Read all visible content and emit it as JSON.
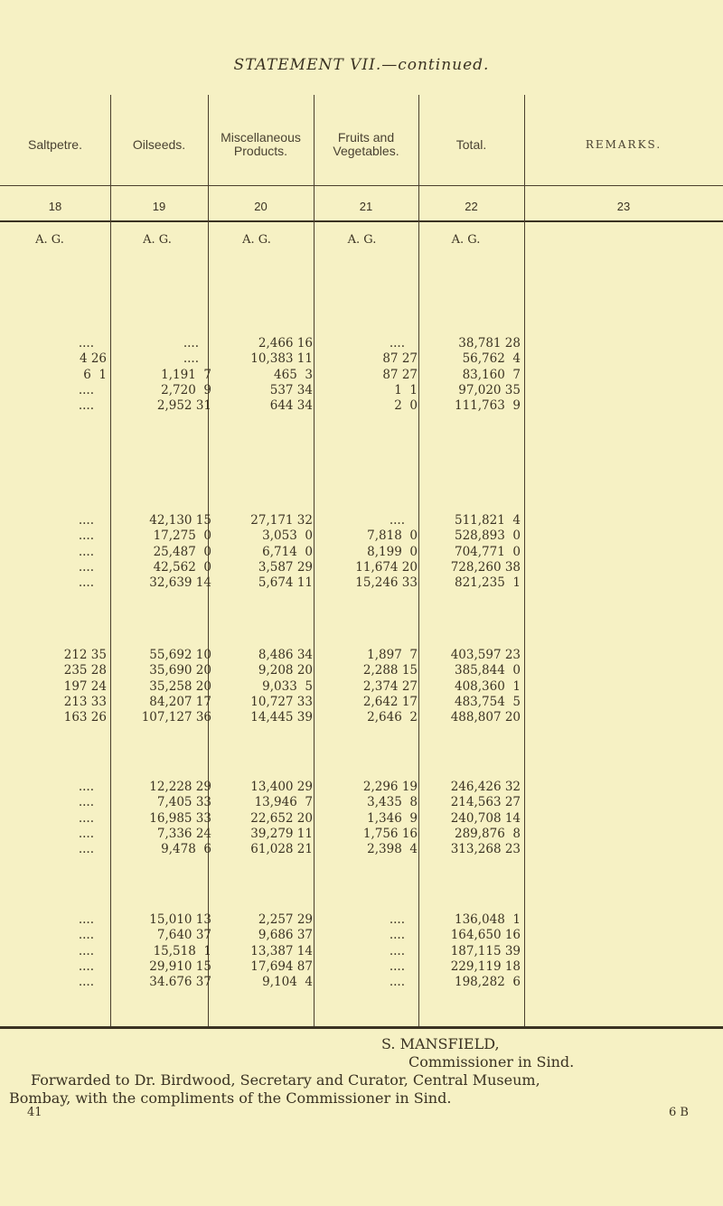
{
  "title": "STATEMENT VII.—continued.",
  "columns": [
    {
      "label": "Saltpetre.",
      "number": "18",
      "units": "A.  G."
    },
    {
      "label": "Oilseeds.",
      "number": "19",
      "units": "A.  G."
    },
    {
      "label": "Miscellaneous Products.",
      "number": "20",
      "units": "A.  G."
    },
    {
      "label": "Fruits and Vegetables.",
      "number": "21",
      "units": "A.  G."
    },
    {
      "label": "Total.",
      "number": "22",
      "units": "A.  G."
    },
    {
      "label": "REMARKS.",
      "number": "23",
      "units": ""
    }
  ],
  "groups": [
    [
      [
        "....",
        "....",
        "2,466 16",
        "....",
        "38,781 28"
      ],
      [
        "4 26",
        "....",
        "10,383 11",
        "87 27",
        "56,762  4"
      ],
      [
        "6  1",
        "1,191  7",
        "465  3",
        "87 27",
        "83,160  7"
      ],
      [
        "....",
        "2,720  9",
        "537 34",
        "1  1",
        "97,020 35"
      ],
      [
        "....",
        "2,952 31",
        "644 34",
        "2  0",
        "111,763  9"
      ]
    ],
    [
      [
        "....",
        "42,130 15",
        "27,171 32",
        "....",
        "511,821  4"
      ],
      [
        "....",
        "17,275  0",
        "3,053  0",
        "7,818  0",
        "528,893  0"
      ],
      [
        "....",
        "25,487  0",
        "6,714  0",
        "8,199  0",
        "704,771  0"
      ],
      [
        "....",
        "42,562  0",
        "3,587 29",
        "11,674 20",
        "728,260 38"
      ],
      [
        "....",
        "32,639 14",
        "5,674 11",
        "15,246 33",
        "821,235  1"
      ]
    ],
    [
      [
        "212 35",
        "55,692 10",
        "8,486 34",
        "1,897  7",
        "403,597 23"
      ],
      [
        "235 28",
        "35,690 20",
        "9,208 20",
        "2,288 15",
        "385,844  0"
      ],
      [
        "197 24",
        "35,258 20",
        "9,033  5",
        "2,374 27",
        "408,360  1"
      ],
      [
        "213 33",
        "84,207 17",
        "10,727 33",
        "2,642 17",
        "483,754  5"
      ],
      [
        "163 26",
        "107,127 36",
        "14,445 39",
        "2,646  2",
        "488,807 20"
      ]
    ],
    [
      [
        "....",
        "12,228 29",
        "13,400 29",
        "2,296 19",
        "246,426 32"
      ],
      [
        "....",
        "7,405 33",
        "13,946  7",
        "3,435  8",
        "214,563 27"
      ],
      [
        "....",
        "16,985 33",
        "22,652 20",
        "1,346  9",
        "240,708 14"
      ],
      [
        "....",
        "7,336 24",
        "39,279 11",
        "1,756 16",
        "289,876  8"
      ],
      [
        "....",
        "9,478  6",
        "61,028 21",
        "2,398  4",
        "313,268 23"
      ]
    ],
    [
      [
        "....",
        "15,010 13",
        "2,257 29",
        "....",
        "136,048  1"
      ],
      [
        "....",
        "7,640 37",
        "9,686 37",
        "....",
        "164,650 16"
      ],
      [
        "....",
        "15,518  1",
        "13,387 14",
        "....",
        "187,115 39"
      ],
      [
        "....",
        "29,910 15",
        "17,694 87",
        "....",
        "229,119 18"
      ],
      [
        "....",
        "34.676 37",
        "9,104  4",
        "....",
        "198,282  6"
      ]
    ]
  ],
  "signature": {
    "name": "S. MANSFIELD,",
    "office": "Commissioner in Sind.",
    "forward_line1": "Forwarded to Dr. Birdwood, Secretary and Curator, Central Museum,",
    "forward_line2": "Bombay, with the compliments of the Commissioner in Sind."
  },
  "footer": {
    "left": "41",
    "right": "6 B"
  }
}
